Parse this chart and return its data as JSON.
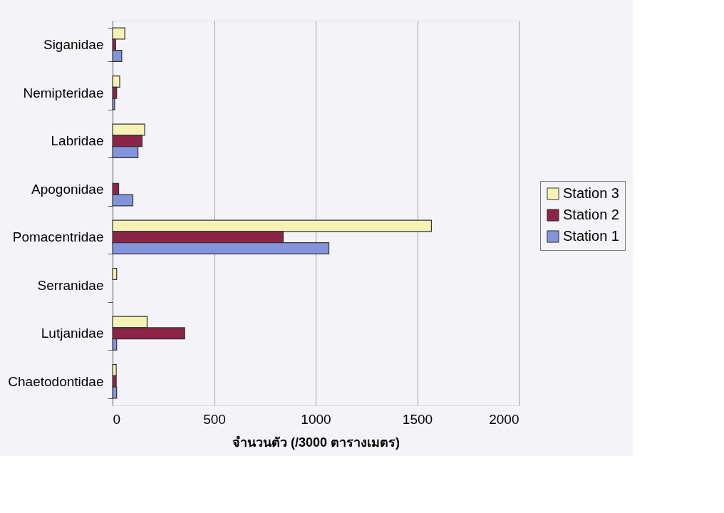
{
  "chart_data": {
    "type": "bar",
    "orientation": "horizontal",
    "xlabel": "จำนวนตัว (/3000 ตารางเมตร)",
    "categories": [
      "Siganidae",
      "Nemipteridae",
      "Labridae",
      "Apogonidae",
      "Pomacentridae",
      "Serranidae",
      "Lutjanidae",
      "Chaetodontidae"
    ],
    "series": [
      {
        "name": "Station 3",
        "color": "#f6f2b4",
        "values": [
          60,
          35,
          158,
          null,
          1570,
          20,
          170,
          18
        ]
      },
      {
        "name": "Station 2",
        "color": "#8c2448",
        "values": [
          15,
          20,
          145,
          30,
          840,
          null,
          355,
          18
        ]
      },
      {
        "name": "Station 1",
        "color": "#8494dc",
        "values": [
          45,
          10,
          125,
          100,
          1065,
          null,
          20,
          20
        ]
      }
    ],
    "xlim": [
      0,
      2000
    ],
    "xticks": [
      0,
      500,
      1000,
      1500,
      2000
    ],
    "grid": "x",
    "legend": "right"
  }
}
